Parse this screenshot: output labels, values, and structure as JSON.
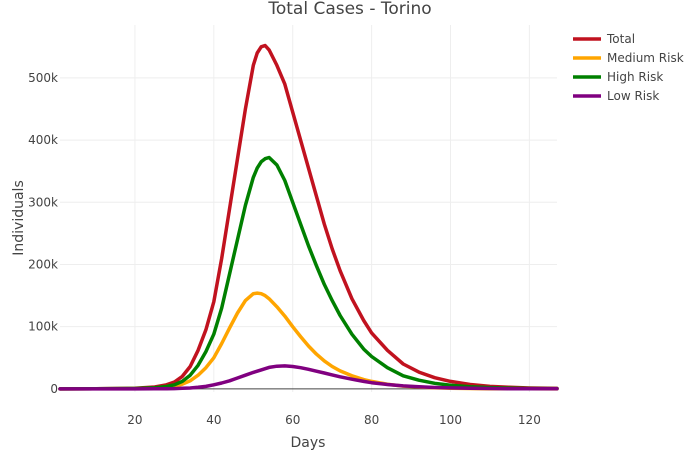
{
  "chart_data": {
    "type": "line",
    "title": "Total Cases - Torino",
    "xlabel": "Days",
    "ylabel": "Individuals",
    "xlim": [
      1,
      127
    ],
    "ylim": [
      -5000,
      585000
    ],
    "xticks": [
      20,
      40,
      60,
      80,
      100,
      120
    ],
    "xtick_labels": [
      "20",
      "40",
      "60",
      "80",
      "100",
      "120"
    ],
    "yticks": [
      0,
      100000,
      200000,
      300000,
      400000,
      500000
    ],
    "ytick_labels": [
      "0",
      "100k",
      "200k",
      "300k",
      "400k",
      "500k"
    ],
    "grid": true,
    "legend": "top-right",
    "x": [
      1,
      10,
      20,
      25,
      28,
      30,
      32,
      34,
      36,
      38,
      40,
      42,
      44,
      46,
      48,
      50,
      51,
      52,
      53,
      54,
      56,
      58,
      60,
      62,
      64,
      66,
      68,
      70,
      72,
      75,
      78,
      80,
      84,
      88,
      92,
      96,
      100,
      105,
      110,
      115,
      120,
      127
    ],
    "series": [
      {
        "name": "Total",
        "color": "#c1121f",
        "values": [
          0,
          200,
          1000,
          3000,
          6500,
          11000,
          20000,
          36000,
          62000,
          95000,
          140000,
          210000,
          290000,
          370000,
          450000,
          520000,
          540000,
          550000,
          552000,
          545000,
          520000,
          490000,
          445000,
          400000,
          355000,
          310000,
          265000,
          225000,
          190000,
          145000,
          110000,
          90000,
          62000,
          40000,
          27000,
          18000,
          12000,
          7000,
          4000,
          2500,
          1500,
          800
        ]
      },
      {
        "name": "Medium Risk",
        "color": "#ffa500",
        "values": [
          0,
          100,
          400,
          1200,
          2500,
          4200,
          7500,
          13000,
          22000,
          34000,
          50000,
          73000,
          98000,
          122000,
          142000,
          153000,
          154000,
          153000,
          150000,
          145000,
          132000,
          117000,
          100000,
          84000,
          69000,
          56000,
          45000,
          36000,
          29000,
          21000,
          15000,
          12000,
          7500,
          4500,
          3000,
          1800,
          1000,
          600,
          300,
          200,
          100,
          50
        ]
      },
      {
        "name": "High Risk",
        "color": "#008000",
        "values": [
          0,
          100,
          600,
          1800,
          3800,
          6500,
          12000,
          22000,
          38000,
          60000,
          88000,
          130000,
          185000,
          240000,
          295000,
          340000,
          355000,
          365000,
          370000,
          372000,
          360000,
          335000,
          300000,
          265000,
          230000,
          198000,
          168000,
          142000,
          118000,
          88000,
          64000,
          52000,
          34000,
          21000,
          14000,
          9000,
          6000,
          3500,
          2000,
          1200,
          700,
          400
        ]
      },
      {
        "name": "Low Risk",
        "color": "#800080",
        "values": [
          0,
          0,
          50,
          150,
          300,
          500,
          900,
          1500,
          2500,
          4000,
          6500,
          9500,
          13000,
          17500,
          22000,
          26500,
          28500,
          30500,
          32500,
          34500,
          36500,
          37000,
          36000,
          34000,
          31500,
          28500,
          25500,
          22500,
          19500,
          15500,
          12000,
          10000,
          7000,
          4800,
          3300,
          2300,
          1600,
          1000,
          600,
          350,
          200,
          100
        ]
      }
    ]
  }
}
